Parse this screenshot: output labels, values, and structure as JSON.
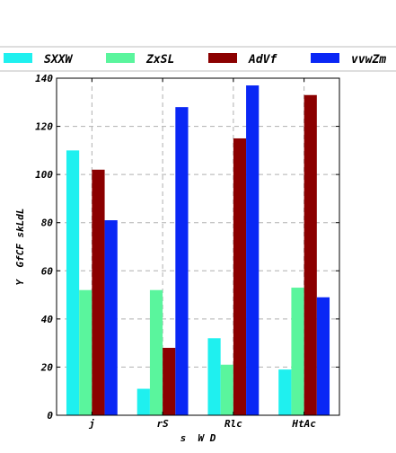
{
  "chart_data": {
    "type": "bar",
    "title": "",
    "xlabel": "s  W D",
    "ylabel": "Y  GfCF skLdL",
    "categories": [
      "j",
      "rS",
      "Rlc",
      "HtAc"
    ],
    "series": [
      {
        "name": "SXXW",
        "color": "#1ff0ef",
        "values": [
          110,
          11,
          32,
          19
        ]
      },
      {
        "name": "ZxSL",
        "color": "#5af59d",
        "values": [
          52,
          52,
          21,
          53
        ]
      },
      {
        "name": "AdVf",
        "color": "#8b0000",
        "values": [
          102,
          28,
          115,
          133
        ]
      },
      {
        "name": "vvwZm",
        "color": "#0a27f5",
        "values": [
          81,
          128,
          137,
          49
        ]
      }
    ],
    "ylim": [
      0,
      140
    ],
    "yticks": [
      0,
      20,
      40,
      60,
      80,
      100,
      120,
      140
    ],
    "grid": true,
    "legend_position": "top"
  }
}
